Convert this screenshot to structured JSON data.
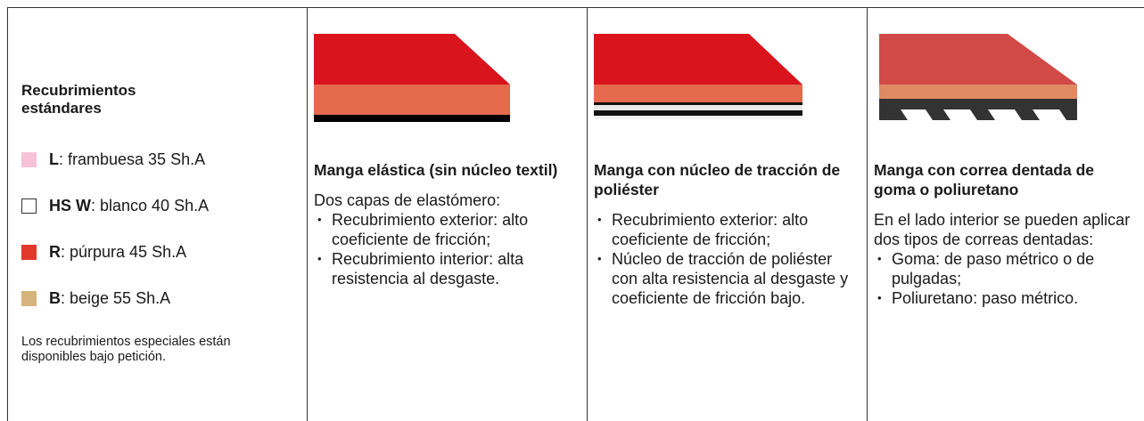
{
  "standard_coatings": {
    "title": "Recubrimientos estándares",
    "items": [
      {
        "code": "L",
        "text": ": frambuesa 35 Sh.A",
        "color": "#f5c2d7"
      },
      {
        "code": "HS W",
        "text": ": blanco 40 Sh.A",
        "color": "#ffffff"
      },
      {
        "code": "R",
        "text": ": púrpura 45 Sh.A",
        "color": "#e2382b"
      },
      {
        "code": "B",
        "text": ": beige 55 Sh.A",
        "color": "#d6b27c"
      }
    ],
    "note": "Los recubrimientos especiales están disponibles bajo petición."
  },
  "columns": [
    {
      "title": "Manga elástica (sin núcleo textil)",
      "intro": "Dos capas de elastómero:",
      "bullets": [
        "Recubrimiento exterior: alto coeficiente de fricción;",
        "Recubrimiento interior: alta resistencia al desgaste."
      ]
    },
    {
      "title": "Manga con núcleo de tracción de poliéster",
      "bullets": [
        "Recubrimiento exterior: alto coeficiente de fricción;",
        "Núcleo de tracción de poliéster con alta resistencia al desgaste y coeficiente de fricción bajo."
      ]
    },
    {
      "title": "Manga con correa dentada de goma o poliuretano",
      "intro": "En el lado interior se pueden aplicar dos tipos de correas dentadas:",
      "bullets": [
        "Goma: de paso métrico o de pulgadas;",
        "Poliuretano: paso métrico."
      ]
    }
  ]
}
